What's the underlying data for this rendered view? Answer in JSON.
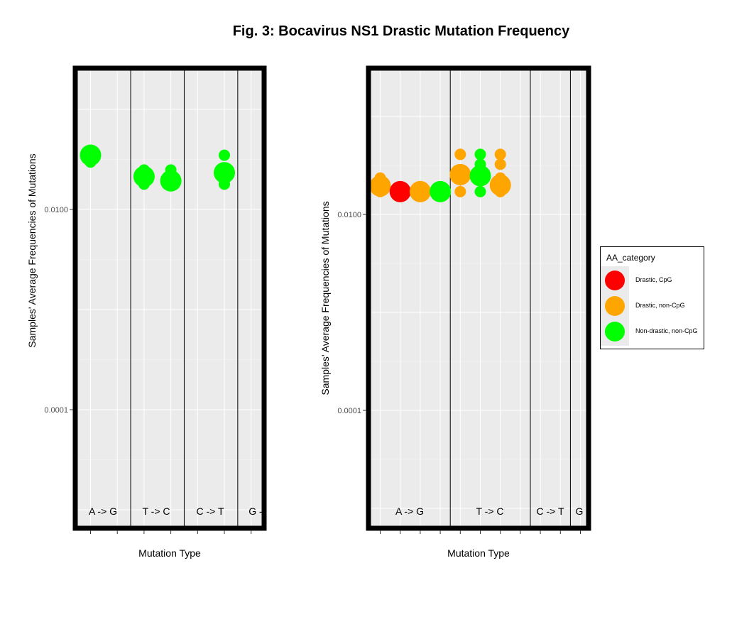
{
  "figure": {
    "title": "Fig. 3: Bocavirus NS1 Drastic Mutation Frequency"
  },
  "legend": {
    "title": "AA_category",
    "items": [
      {
        "label": "Drastic, CpG",
        "color": "#ff0000"
      },
      {
        "label": "Drastic, non-CpG",
        "color": "#ffa500"
      },
      {
        "label": "Non-drastic, non-CpG",
        "color": "#00ff00"
      }
    ]
  },
  "chart_data": [
    {
      "type": "scatter",
      "xlabel": "Mutation Type",
      "ylabel": "Samples' Average Frequencies of Mutations",
      "log_y": true,
      "y_ticks": [
        {
          "value": 0.01,
          "label": "0.0100"
        },
        {
          "value": 0.0001,
          "label": "0.0001"
        }
      ],
      "x_positions": 9,
      "groups": [
        {
          "label": "A -> G"
        },
        {
          "label": "T -> C"
        },
        {
          "label": "C -> T"
        },
        {
          "label": "G -"
        }
      ],
      "group_dividers": [
        2.5,
        4.5,
        6.5
      ],
      "points": [
        {
          "x": 1,
          "y": 0.0385,
          "size": "small",
          "category": "Non-drastic, non-CpG"
        },
        {
          "x": 1,
          "y": 0.0348,
          "size": "large",
          "category": "Non-drastic, non-CpG"
        },
        {
          "x": 1,
          "y": 0.0297,
          "size": "small",
          "category": "Non-drastic, non-CpG"
        },
        {
          "x": 3,
          "y": 0.0248,
          "size": "small",
          "category": "Non-drastic, non-CpG"
        },
        {
          "x": 3,
          "y": 0.0213,
          "size": "large",
          "category": "Non-drastic, non-CpG"
        },
        {
          "x": 3,
          "y": 0.0179,
          "size": "small",
          "category": "Non-drastic, non-CpG"
        },
        {
          "x": 4,
          "y": 0.0248,
          "size": "small",
          "category": "Non-drastic, non-CpG"
        },
        {
          "x": 4,
          "y": 0.0193,
          "size": "large",
          "category": "Non-drastic, non-CpG"
        },
        {
          "x": 4,
          "y": 0.0179,
          "size": "small",
          "category": "Non-drastic, non-CpG"
        },
        {
          "x": 6,
          "y": 0.0348,
          "size": "small",
          "category": "Non-drastic, non-CpG"
        },
        {
          "x": 6,
          "y": 0.0233,
          "size": "large",
          "category": "Non-drastic, non-CpG"
        },
        {
          "x": 6,
          "y": 0.0179,
          "size": "small",
          "category": "Non-drastic, non-CpG"
        }
      ],
      "error_bars": [
        {
          "x": 3,
          "low": 0.0194,
          "high": 0.025,
          "category": "Non-drastic, non-CpG"
        }
      ]
    },
    {
      "type": "scatter",
      "xlabel": "Mutation Type",
      "ylabel": "Samples' Average Frequencies of Mutations",
      "log_y": true,
      "y_ticks": [
        {
          "value": 0.01,
          "label": "0.0100"
        },
        {
          "value": 0.0001,
          "label": "0.0001"
        }
      ],
      "x_positions": 11,
      "groups": [
        {
          "label": "A -> G"
        },
        {
          "label": "T -> C"
        },
        {
          "label": "C -> T"
        },
        {
          "label": "G"
        }
      ],
      "group_dividers": [
        4.5,
        8.5,
        10.5
      ],
      "points": [
        {
          "x": 1,
          "y": 0.0235,
          "size": "small",
          "category": "Drastic, non-CpG"
        },
        {
          "x": 1,
          "y": 0.0195,
          "size": "large",
          "category": "Drastic, non-CpG"
        },
        {
          "x": 1,
          "y": 0.0171,
          "size": "small",
          "category": "Drastic, non-CpG"
        },
        {
          "x": 2,
          "y": 0.0171,
          "size": "large",
          "category": "Drastic, CpG"
        },
        {
          "x": 3,
          "y": 0.0171,
          "size": "large",
          "category": "Drastic, non-CpG"
        },
        {
          "x": 4,
          "y": 0.0171,
          "size": "large",
          "category": "Non-drastic, non-CpG"
        },
        {
          "x": 5,
          "y": 0.041,
          "size": "small",
          "category": "Drastic, non-CpG"
        },
        {
          "x": 5,
          "y": 0.0255,
          "size": "large",
          "category": "Drastic, non-CpG"
        },
        {
          "x": 5,
          "y": 0.0171,
          "size": "small",
          "category": "Drastic, non-CpG"
        },
        {
          "x": 6,
          "y": 0.041,
          "size": "small",
          "category": "Non-drastic, non-CpG"
        },
        {
          "x": 6,
          "y": 0.0325,
          "size": "small",
          "category": "Non-drastic, non-CpG"
        },
        {
          "x": 6,
          "y": 0.0248,
          "size": "large",
          "category": "Non-drastic, non-CpG"
        },
        {
          "x": 6,
          "y": 0.0171,
          "size": "small",
          "category": "Non-drastic, non-CpG"
        },
        {
          "x": 7,
          "y": 0.041,
          "size": "small",
          "category": "Drastic, non-CpG"
        },
        {
          "x": 7,
          "y": 0.0325,
          "size": "small",
          "category": "Drastic, non-CpG"
        },
        {
          "x": 7,
          "y": 0.0235,
          "size": "small",
          "category": "Drastic, non-CpG"
        },
        {
          "x": 7,
          "y": 0.0199,
          "size": "large",
          "category": "Drastic, non-CpG"
        },
        {
          "x": 7,
          "y": 0.0171,
          "size": "small",
          "category": "Drastic, non-CpG"
        }
      ],
      "error_bars": [
        {
          "x": 5,
          "low": 0.0173,
          "high": 0.0305,
          "category": "Drastic, non-CpG"
        },
        {
          "x": 6,
          "low": 0.0208,
          "high": 0.0282,
          "category": "Non-drastic, non-CpG"
        }
      ]
    }
  ]
}
